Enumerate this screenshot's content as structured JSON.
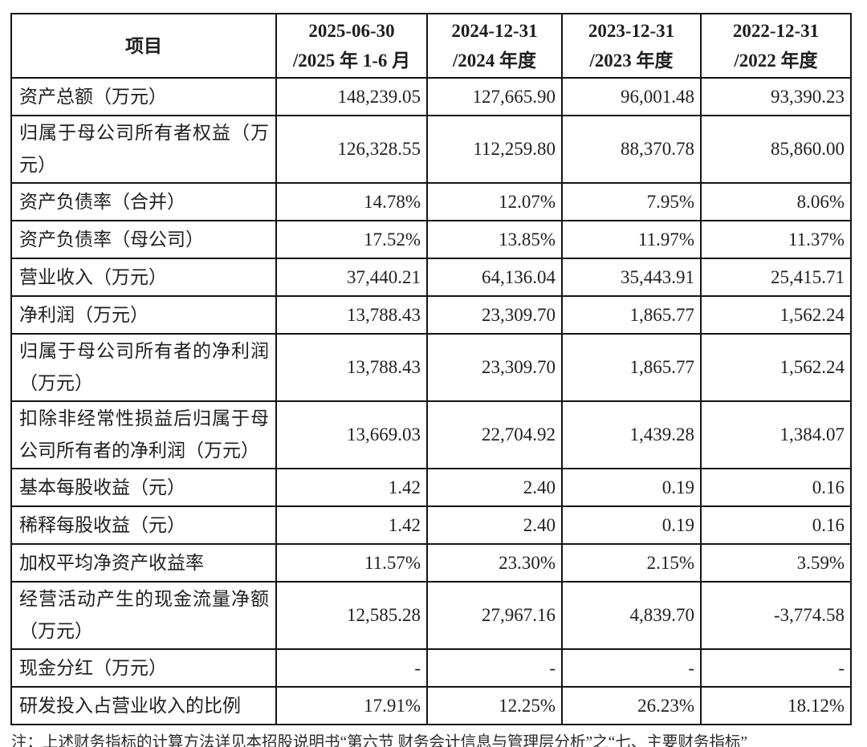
{
  "page": {
    "background": "#ffffff",
    "text_color": "#1f1f1f",
    "border_color": "#141414"
  },
  "table": {
    "header": [
      {
        "line1": "项目",
        "line2": ""
      },
      {
        "line1": "2025-06-30",
        "line2": "/2025 年 1-6 月"
      },
      {
        "line1": "2024-12-31",
        "line2": "/2024 年度"
      },
      {
        "line1": "2023-12-31",
        "line2": "/2023 年度"
      },
      {
        "line1": "2022-12-31",
        "line2": "/2022 年度"
      }
    ],
    "rows": [
      {
        "label": "资产总额（万元）",
        "tall": false,
        "values": [
          "148,239.05",
          "127,665.90",
          "96,001.48",
          "93,390.23"
        ]
      },
      {
        "label": "归属于母公司所有者权益（万元）",
        "tall": true,
        "values": [
          "126,328.55",
          "112,259.80",
          "88,370.78",
          "85,860.00"
        ]
      },
      {
        "label": "资产负债率（合并）",
        "tall": false,
        "values": [
          "14.78%",
          "12.07%",
          "7.95%",
          "8.06%"
        ]
      },
      {
        "label": "资产负债率（母公司）",
        "tall": false,
        "values": [
          "17.52%",
          "13.85%",
          "11.97%",
          "11.37%"
        ]
      },
      {
        "label": "营业收入（万元）",
        "tall": false,
        "values": [
          "37,440.21",
          "64,136.04",
          "35,443.91",
          "25,415.71"
        ]
      },
      {
        "label": "净利润（万元）",
        "tall": false,
        "values": [
          "13,788.43",
          "23,309.70",
          "1,865.77",
          "1,562.24"
        ]
      },
      {
        "label": "归属于母公司所有者的净利润（万元）",
        "tall": true,
        "values": [
          "13,788.43",
          "23,309.70",
          "1,865.77",
          "1,562.24"
        ]
      },
      {
        "label": "扣除非经常性损益后归属于母公司所有者的净利润（万元）",
        "tall": true,
        "values": [
          "13,669.03",
          "22,704.92",
          "1,439.28",
          "1,384.07"
        ]
      },
      {
        "label": "基本每股收益（元）",
        "tall": false,
        "values": [
          "1.42",
          "2.40",
          "0.19",
          "0.16"
        ]
      },
      {
        "label": "稀释每股收益（元）",
        "tall": false,
        "values": [
          "1.42",
          "2.40",
          "0.19",
          "0.16"
        ]
      },
      {
        "label": "加权平均净资产收益率",
        "tall": false,
        "values": [
          "11.57%",
          "23.30%",
          "2.15%",
          "3.59%"
        ]
      },
      {
        "label": "经营活动产生的现金流量净额（万元）",
        "tall": true,
        "values": [
          "12,585.28",
          "27,967.16",
          "4,839.70",
          "-3,774.58"
        ]
      },
      {
        "label": "现金分红（万元）",
        "tall": false,
        "values": [
          "-",
          "-",
          "-",
          "-"
        ]
      },
      {
        "label": "研发投入占营业收入的比例",
        "tall": false,
        "values": [
          "17.91%",
          "12.25%",
          "26.23%",
          "18.12%"
        ]
      }
    ]
  },
  "note": "注：上述财务指标的计算方法详见本招股说明书“第六节 财务会计信息与管理层分析”之“七、主要财务指标”"
}
